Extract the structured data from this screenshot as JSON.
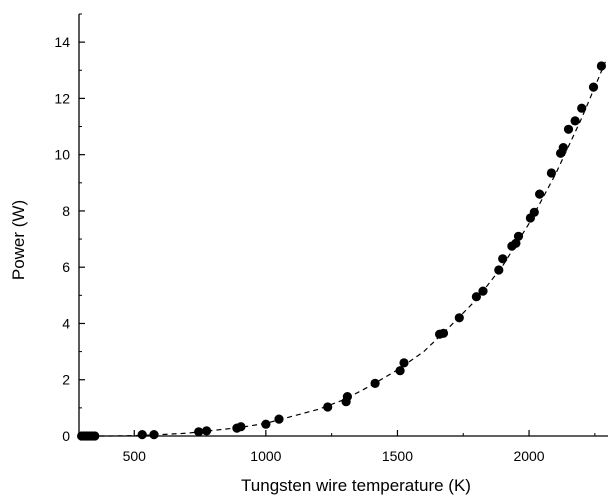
{
  "chart_data": {
    "type": "scatter",
    "xlabel": "Tungsten wire temperature (K)",
    "ylabel": "Power (W)",
    "xlim": [
      290,
      2300
    ],
    "ylim": [
      0,
      15
    ],
    "x_ticks": [
      500,
      1000,
      1500,
      2000
    ],
    "y_ticks": [
      0,
      2,
      4,
      6,
      8,
      10,
      12,
      14
    ],
    "x_tick_labels": [
      "500",
      "1000",
      "1500",
      "2000"
    ],
    "y_tick_labels": [
      "0",
      "2",
      "4",
      "6",
      "8",
      "10",
      "12",
      "14"
    ],
    "grid": false,
    "series": [
      {
        "style": "markers",
        "color": "#000000",
        "points": [
          [
            300,
            0.0
          ],
          [
            310,
            0.0
          ],
          [
            320,
            0.0
          ],
          [
            330,
            0.0
          ],
          [
            340,
            0.0
          ],
          [
            350,
            0.0
          ],
          [
            530,
            0.05
          ],
          [
            575,
            0.05
          ],
          [
            745,
            0.15
          ],
          [
            775,
            0.18
          ],
          [
            890,
            0.28
          ],
          [
            905,
            0.33
          ],
          [
            1000,
            0.42
          ],
          [
            1050,
            0.6
          ],
          [
            1235,
            1.03
          ],
          [
            1305,
            1.22
          ],
          [
            1310,
            1.4
          ],
          [
            1415,
            1.87
          ],
          [
            1510,
            2.32
          ],
          [
            1525,
            2.6
          ],
          [
            1660,
            3.62
          ],
          [
            1675,
            3.65
          ],
          [
            1735,
            4.2
          ],
          [
            1800,
            4.95
          ],
          [
            1825,
            5.15
          ],
          [
            1885,
            5.9
          ],
          [
            1900,
            6.3
          ],
          [
            1935,
            6.75
          ],
          [
            1950,
            6.85
          ],
          [
            1960,
            7.1
          ],
          [
            2005,
            7.75
          ],
          [
            2020,
            7.95
          ],
          [
            2040,
            8.6
          ],
          [
            2085,
            9.35
          ],
          [
            2120,
            10.05
          ],
          [
            2130,
            10.25
          ],
          [
            2150,
            10.9
          ],
          [
            2175,
            11.2
          ],
          [
            2200,
            11.65
          ],
          [
            2245,
            12.4
          ],
          [
            2275,
            13.15
          ]
        ]
      },
      {
        "style": "dashed-line",
        "color": "#000000",
        "points": [
          [
            300,
            0.0
          ],
          [
            400,
            0.0
          ],
          [
            500,
            0.01
          ],
          [
            600,
            0.05
          ],
          [
            700,
            0.1
          ],
          [
            800,
            0.2
          ],
          [
            900,
            0.3
          ],
          [
            1000,
            0.45
          ],
          [
            1100,
            0.7
          ],
          [
            1200,
            0.95
          ],
          [
            1300,
            1.3
          ],
          [
            1400,
            1.8
          ],
          [
            1500,
            2.35
          ],
          [
            1600,
            3.0
          ],
          [
            1700,
            3.9
          ],
          [
            1800,
            4.85
          ],
          [
            1900,
            6.05
          ],
          [
            2000,
            7.55
          ],
          [
            2100,
            9.3
          ],
          [
            2200,
            11.3
          ],
          [
            2290,
            13.3
          ]
        ]
      }
    ]
  }
}
